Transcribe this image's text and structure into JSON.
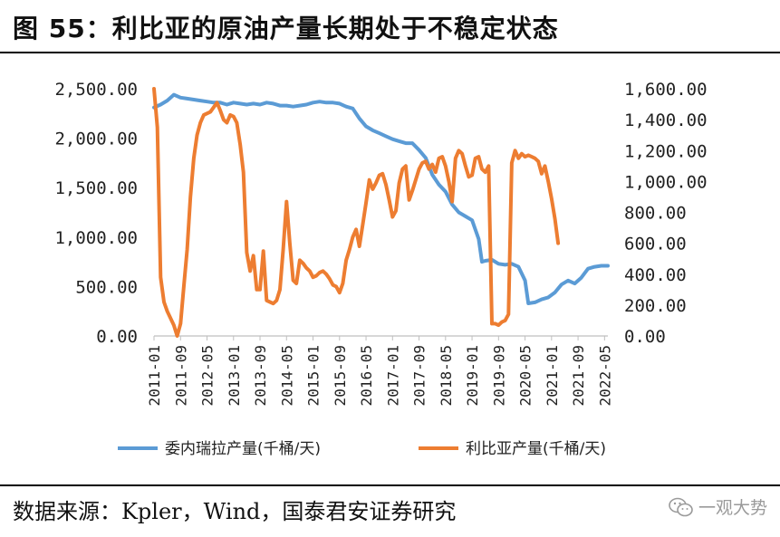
{
  "title": "图 55：利比亚的原油产量长期处于不稳定状态",
  "source": "数据来源：Kpler，Wind，国泰君安证券研究",
  "watermark": "一观大势",
  "colors": {
    "venezuela": "#5b9bd5",
    "libya": "#ed7d31",
    "axis": "#bfbfbf"
  },
  "chart_data": {
    "type": "line",
    "title": "利比亚的原油产量长期处于不稳定状态",
    "x_start": "2011-01",
    "x_end": "2022-06",
    "x_ticks": [
      "2011-01",
      "2011-09",
      "2012-05",
      "2013-01",
      "2013-09",
      "2014-05",
      "2015-01",
      "2015-09",
      "2016-05",
      "2017-01",
      "2017-09",
      "2018-05",
      "2019-01",
      "2019-09",
      "2020-05",
      "2021-01",
      "2021-09",
      "2022-05"
    ],
    "y_left": {
      "min": 0,
      "max": 2500,
      "ticks": [
        "0.00",
        "500.00",
        "1,000.00",
        "1,500.00",
        "2,000.00",
        "2,500.00"
      ],
      "tick_values": [
        0,
        500,
        1000,
        1500,
        2000,
        2500
      ]
    },
    "y_right": {
      "min": 0,
      "max": 1600,
      "ticks": [
        "0.00",
        "200.00",
        "400.00",
        "600.00",
        "800.00",
        "1,000.00",
        "1,200.00",
        "1,400.00",
        "1,600.00"
      ],
      "tick_values": [
        0,
        200,
        400,
        600,
        800,
        1000,
        1200,
        1400,
        1600
      ]
    },
    "legend_position": "bottom",
    "series": [
      {
        "name": "委内瑞拉产量(千桶/天)",
        "axis": "left",
        "color": "#5b9bd5",
        "points": [
          [
            "2011-01",
            2310
          ],
          [
            "2011-03",
            2340
          ],
          [
            "2011-05",
            2380
          ],
          [
            "2011-07",
            2440
          ],
          [
            "2011-09",
            2410
          ],
          [
            "2011-11",
            2400
          ],
          [
            "2012-01",
            2390
          ],
          [
            "2012-03",
            2380
          ],
          [
            "2012-05",
            2370
          ],
          [
            "2012-07",
            2360
          ],
          [
            "2012-09",
            2360
          ],
          [
            "2012-11",
            2340
          ],
          [
            "2013-01",
            2360
          ],
          [
            "2013-03",
            2350
          ],
          [
            "2013-05",
            2340
          ],
          [
            "2013-07",
            2350
          ],
          [
            "2013-09",
            2340
          ],
          [
            "2013-11",
            2360
          ],
          [
            "2014-01",
            2350
          ],
          [
            "2014-03",
            2330
          ],
          [
            "2014-05",
            2330
          ],
          [
            "2014-07",
            2320
          ],
          [
            "2014-09",
            2330
          ],
          [
            "2014-11",
            2340
          ],
          [
            "2015-01",
            2360
          ],
          [
            "2015-03",
            2370
          ],
          [
            "2015-05",
            2360
          ],
          [
            "2015-07",
            2360
          ],
          [
            "2015-09",
            2350
          ],
          [
            "2015-11",
            2320
          ],
          [
            "2016-01",
            2300
          ],
          [
            "2016-03",
            2200
          ],
          [
            "2016-05",
            2120
          ],
          [
            "2016-07",
            2080
          ],
          [
            "2016-09",
            2050
          ],
          [
            "2016-11",
            2020
          ],
          [
            "2017-01",
            1990
          ],
          [
            "2017-03",
            1970
          ],
          [
            "2017-05",
            1950
          ],
          [
            "2017-07",
            1950
          ],
          [
            "2017-09",
            1880
          ],
          [
            "2017-11",
            1800
          ],
          [
            "2018-01",
            1630
          ],
          [
            "2018-03",
            1530
          ],
          [
            "2018-05",
            1460
          ],
          [
            "2018-07",
            1330
          ],
          [
            "2018-09",
            1250
          ],
          [
            "2018-11",
            1210
          ],
          [
            "2019-01",
            1170
          ],
          [
            "2019-03",
            980
          ],
          [
            "2019-04",
            750
          ],
          [
            "2019-05",
            760
          ],
          [
            "2019-07",
            770
          ],
          [
            "2019-09",
            730
          ],
          [
            "2019-11",
            720
          ],
          [
            "2020-01",
            730
          ],
          [
            "2020-03",
            700
          ],
          [
            "2020-05",
            560
          ],
          [
            "2020-06",
            330
          ],
          [
            "2020-08",
            340
          ],
          [
            "2020-10",
            370
          ],
          [
            "2020-12",
            390
          ],
          [
            "2021-02",
            440
          ],
          [
            "2021-04",
            520
          ],
          [
            "2021-06",
            560
          ],
          [
            "2021-08",
            530
          ],
          [
            "2021-10",
            590
          ],
          [
            "2021-12",
            680
          ],
          [
            "2022-02",
            700
          ],
          [
            "2022-04",
            710
          ],
          [
            "2022-06",
            710
          ]
        ]
      },
      {
        "name": "利比亚产量(千桶/天)",
        "axis": "right",
        "color": "#ed7d31",
        "points": [
          [
            "2011-01",
            1600
          ],
          [
            "2011-02",
            1350
          ],
          [
            "2011-03",
            380
          ],
          [
            "2011-04",
            220
          ],
          [
            "2011-05",
            160
          ],
          [
            "2011-07",
            70
          ],
          [
            "2011-08",
            0
          ],
          [
            "2011-09",
            80
          ],
          [
            "2011-10",
            320
          ],
          [
            "2011-11",
            560
          ],
          [
            "2011-12",
            900
          ],
          [
            "2012-01",
            1150
          ],
          [
            "2012-02",
            1300
          ],
          [
            "2012-03",
            1380
          ],
          [
            "2012-04",
            1430
          ],
          [
            "2012-06",
            1450
          ],
          [
            "2012-08",
            1510
          ],
          [
            "2012-09",
            1460
          ],
          [
            "2012-10",
            1400
          ],
          [
            "2012-11",
            1380
          ],
          [
            "2012-12",
            1430
          ],
          [
            "2013-01",
            1420
          ],
          [
            "2013-02",
            1380
          ],
          [
            "2013-03",
            1240
          ],
          [
            "2013-04",
            1060
          ],
          [
            "2013-05",
            540
          ],
          [
            "2013-06",
            420
          ],
          [
            "2013-07",
            520
          ],
          [
            "2013-08",
            300
          ],
          [
            "2013-09",
            300
          ],
          [
            "2013-10",
            550
          ],
          [
            "2013-11",
            230
          ],
          [
            "2013-12",
            220
          ],
          [
            "2014-01",
            210
          ],
          [
            "2014-02",
            230
          ],
          [
            "2014-03",
            300
          ],
          [
            "2014-04",
            560
          ],
          [
            "2014-05",
            870
          ],
          [
            "2014-06",
            600
          ],
          [
            "2014-07",
            360
          ],
          [
            "2014-08",
            340
          ],
          [
            "2014-09",
            490
          ],
          [
            "2014-10",
            470
          ],
          [
            "2014-11",
            440
          ],
          [
            "2014-12",
            420
          ],
          [
            "2015-01",
            380
          ],
          [
            "2015-02",
            390
          ],
          [
            "2015-03",
            410
          ],
          [
            "2015-04",
            420
          ],
          [
            "2015-05",
            400
          ],
          [
            "2015-06",
            370
          ],
          [
            "2015-07",
            330
          ],
          [
            "2015-08",
            320
          ],
          [
            "2015-09",
            280
          ],
          [
            "2015-10",
            340
          ],
          [
            "2015-11",
            490
          ],
          [
            "2015-12",
            560
          ],
          [
            "2016-01",
            640
          ],
          [
            "2016-02",
            690
          ],
          [
            "2016-03",
            580
          ],
          [
            "2016-04",
            720
          ],
          [
            "2016-05",
            860
          ],
          [
            "2016-06",
            1010
          ],
          [
            "2016-07",
            950
          ],
          [
            "2016-08",
            990
          ],
          [
            "2016-09",
            1040
          ],
          [
            "2016-10",
            1050
          ],
          [
            "2016-11",
            980
          ],
          [
            "2016-12",
            880
          ],
          [
            "2017-01",
            770
          ],
          [
            "2017-02",
            810
          ],
          [
            "2017-03",
            990
          ],
          [
            "2017-04",
            1080
          ],
          [
            "2017-05",
            1100
          ],
          [
            "2017-06",
            880
          ],
          [
            "2017-07",
            940
          ],
          [
            "2017-08",
            1010
          ],
          [
            "2017-09",
            1080
          ],
          [
            "2017-10",
            1120
          ],
          [
            "2017-11",
            1130
          ],
          [
            "2017-12",
            1080
          ],
          [
            "2018-01",
            1110
          ],
          [
            "2018-02",
            1060
          ],
          [
            "2018-03",
            1150
          ],
          [
            "2018-04",
            1160
          ],
          [
            "2018-05",
            1100
          ],
          [
            "2018-06",
            1000
          ],
          [
            "2018-07",
            870
          ],
          [
            "2018-08",
            1150
          ],
          [
            "2018-09",
            1200
          ],
          [
            "2018-10",
            1180
          ],
          [
            "2018-11",
            1100
          ],
          [
            "2018-12",
            1030
          ],
          [
            "2019-01",
            1040
          ],
          [
            "2019-02",
            1150
          ],
          [
            "2019-03",
            1160
          ],
          [
            "2019-04",
            1080
          ],
          [
            "2019-05",
            1060
          ],
          [
            "2019-06",
            1100
          ],
          [
            "2019-07",
            80
          ],
          [
            "2019-08",
            80
          ],
          [
            "2019-09",
            70
          ],
          [
            "2019-10",
            90
          ],
          [
            "2019-11",
            100
          ],
          [
            "2019-12",
            140
          ],
          [
            "2020-01",
            1120
          ],
          [
            "2020-02",
            1200
          ],
          [
            "2020-03",
            1150
          ],
          [
            "2020-04",
            1180
          ],
          [
            "2020-05",
            1160
          ],
          [
            "2020-06",
            1170
          ],
          [
            "2020-07",
            1160
          ],
          [
            "2020-08",
            1150
          ],
          [
            "2020-09",
            1130
          ],
          [
            "2020-10",
            1050
          ],
          [
            "2020-11",
            1100
          ],
          [
            "2020-12",
            1000
          ],
          [
            "2021-01",
            890
          ],
          [
            "2021-02",
            760
          ],
          [
            "2021-03",
            600
          ]
        ]
      }
    ]
  }
}
